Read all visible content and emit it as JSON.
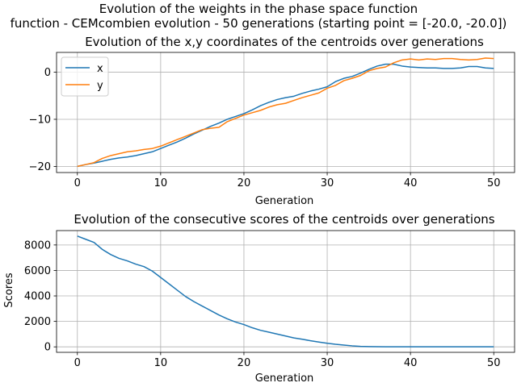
{
  "figure": {
    "suptitle_line1": "Evolution of the weights in the phase space  function",
    "suptitle_line2": "function - CEMcombien evolution - 50 generations (starting point = [-20.0, -20.0])"
  },
  "colors": {
    "x_series": "#1f77b4",
    "y_series": "#ff7f0e",
    "grid": "#b0b0b0"
  },
  "chart_data": [
    {
      "type": "line",
      "title": "Evolution of the x,y coordinates of the centroids over generations",
      "xlabel": "Generation",
      "ylabel": "",
      "xlim": [
        -2.5,
        52.5
      ],
      "ylim": [
        -21.3,
        4.2
      ],
      "xticks": [
        0,
        10,
        20,
        30,
        40,
        50
      ],
      "yticks": [
        -20,
        -10,
        0
      ],
      "grid": true,
      "legend": "upper-left",
      "x": [
        0,
        1,
        2,
        3,
        4,
        5,
        6,
        7,
        8,
        9,
        10,
        11,
        12,
        13,
        14,
        15,
        16,
        17,
        18,
        19,
        20,
        21,
        22,
        23,
        24,
        25,
        26,
        27,
        28,
        29,
        30,
        31,
        32,
        33,
        34,
        35,
        36,
        37,
        38,
        39,
        40,
        41,
        42,
        43,
        44,
        45,
        46,
        47,
        48,
        49,
        50
      ],
      "series": [
        {
          "name": "x",
          "values": [
            -20.0,
            -19.6,
            -19.3,
            -18.9,
            -18.5,
            -18.2,
            -18.0,
            -17.7,
            -17.3,
            -16.9,
            -16.2,
            -15.5,
            -14.8,
            -14.0,
            -13.1,
            -12.3,
            -11.5,
            -10.8,
            -10.0,
            -9.4,
            -8.8,
            -8.0,
            -7.1,
            -6.4,
            -5.8,
            -5.4,
            -5.1,
            -4.5,
            -4.0,
            -3.6,
            -3.1,
            -2.0,
            -1.3,
            -0.9,
            -0.2,
            0.6,
            1.3,
            1.7,
            1.7,
            1.3,
            1.1,
            1.0,
            0.9,
            0.9,
            0.8,
            0.8,
            0.9,
            1.2,
            1.2,
            0.9,
            0.8
          ]
        },
        {
          "name": "y",
          "values": [
            -20.0,
            -19.6,
            -19.2,
            -18.3,
            -17.7,
            -17.3,
            -16.9,
            -16.7,
            -16.4,
            -16.2,
            -15.7,
            -15.0,
            -14.3,
            -13.6,
            -12.9,
            -12.2,
            -11.9,
            -11.7,
            -10.5,
            -9.8,
            -9.1,
            -8.6,
            -8.1,
            -7.4,
            -6.9,
            -6.6,
            -6.0,
            -5.4,
            -4.9,
            -4.4,
            -3.4,
            -2.8,
            -1.8,
            -1.3,
            -0.7,
            0.3,
            0.8,
            1.1,
            2.0,
            2.6,
            2.8,
            2.6,
            2.8,
            2.7,
            2.9,
            2.9,
            2.7,
            2.6,
            2.7,
            3.0,
            2.9
          ]
        }
      ]
    },
    {
      "type": "line",
      "title": "Evolution of the consecutive scores of the centroids over generations",
      "xlabel": "Generation",
      "ylabel": "Scores",
      "xlim": [
        -2.5,
        52.5
      ],
      "ylim": [
        -430,
        9130
      ],
      "xticks": [
        0,
        10,
        20,
        30,
        40,
        50
      ],
      "yticks": [
        0,
        2000,
        4000,
        6000,
        8000
      ],
      "grid": true,
      "x": [
        0,
        1,
        2,
        3,
        4,
        5,
        6,
        7,
        8,
        9,
        10,
        11,
        12,
        13,
        14,
        15,
        16,
        17,
        18,
        19,
        20,
        21,
        22,
        23,
        24,
        25,
        26,
        27,
        28,
        29,
        30,
        31,
        32,
        33,
        34,
        35,
        36,
        37,
        38,
        39,
        40,
        41,
        42,
        43,
        44,
        45,
        46,
        47,
        48,
        49,
        50
      ],
      "series": [
        {
          "values": [
            8700,
            8450,
            8200,
            7650,
            7250,
            6950,
            6750,
            6500,
            6300,
            5950,
            5450,
            4950,
            4450,
            3950,
            3550,
            3200,
            2850,
            2500,
            2200,
            1950,
            1750,
            1500,
            1300,
            1150,
            1000,
            850,
            700,
            600,
            480,
            380,
            280,
            200,
            140,
            80,
            40,
            20,
            10,
            5,
            5,
            5,
            5,
            5,
            5,
            5,
            5,
            5,
            5,
            5,
            5,
            5,
            5
          ]
        }
      ]
    }
  ]
}
